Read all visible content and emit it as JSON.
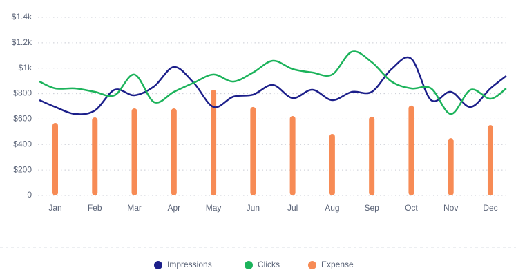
{
  "chart_data": {
    "type": "combo",
    "categories": [
      "Jan",
      "Feb",
      "Mar",
      "Apr",
      "May",
      "Jun",
      "Jul",
      "Aug",
      "Sep",
      "Oct",
      "Nov",
      "Dec"
    ],
    "ylim": [
      0,
      1400
    ],
    "yticks": [
      0,
      {
        "value": 200,
        "label": "$200"
      },
      {
        "value": 400,
        "label": "$400"
      },
      {
        "value": 600,
        "label": "$600"
      },
      {
        "value": 800,
        "label": "$800"
      },
      {
        "value": 1000,
        "label": "$1k"
      },
      {
        "value": 1200,
        "label": "$1.2k"
      },
      {
        "value": 1400,
        "label": "$1.4k"
      }
    ],
    "grid": true,
    "legend": "bottom",
    "series": [
      {
        "name": "Impressions",
        "type": "line",
        "color": "#1c1f8a",
        "x": [
          -0.4,
          0,
          0.5,
          1,
          1.5,
          2,
          2.5,
          3,
          3.5,
          4,
          4.5,
          5,
          5.5,
          6,
          6.5,
          7,
          7.5,
          8,
          8.5,
          9,
          9.5,
          10,
          10.5,
          11,
          11.4
        ],
        "values": [
          749,
          695,
          640,
          667,
          830,
          787,
          857,
          1009,
          885,
          695,
          776,
          792,
          868,
          765,
          830,
          749,
          814,
          814,
          993,
          1074,
          749,
          814,
          695,
          841,
          939
        ]
      },
      {
        "name": "Clicks",
        "type": "line",
        "color": "#1cb35b",
        "x": [
          -0.4,
          0,
          0.5,
          1,
          1.5,
          2,
          2.5,
          3,
          3.5,
          4,
          4.5,
          5,
          5.5,
          6,
          6.5,
          7,
          7.5,
          8,
          8.5,
          9,
          9.5,
          10,
          10.5,
          11,
          11.4
        ],
        "values": [
          895,
          841,
          841,
          814,
          787,
          950,
          733,
          814,
          885,
          950,
          895,
          966,
          1058,
          993,
          966,
          950,
          1129,
          1047,
          895,
          841,
          841,
          640,
          830,
          760,
          841
        ]
      },
      {
        "name": "Expense",
        "type": "bar",
        "color": "#f78b55",
        "values": [
          570,
          613,
          684,
          684,
          830,
          695,
          624,
          483,
          619,
          706,
          450,
          553
        ]
      }
    ]
  }
}
